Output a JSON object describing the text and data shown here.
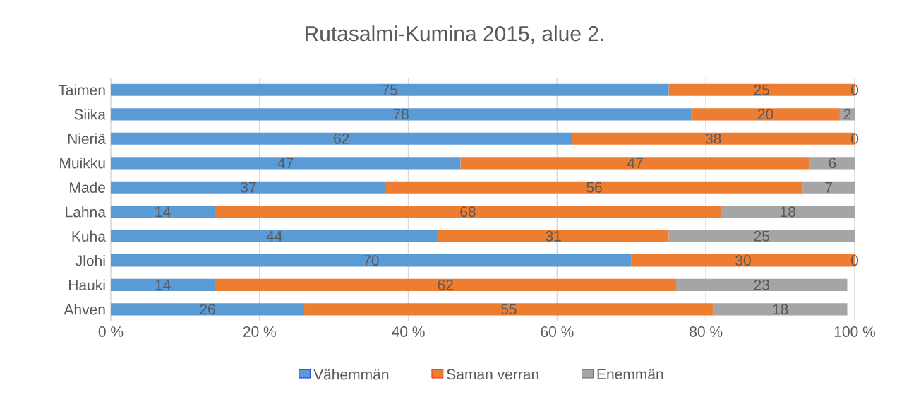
{
  "chart_data": {
    "type": "bar",
    "orientation": "horizontal",
    "stacked": true,
    "title": "Rutasalmi-Kumina 2015, alue 2.",
    "categories": [
      "Taimen",
      "Siika",
      "Nieriä",
      "Muikku",
      "Made",
      "Lahna",
      "Kuha",
      "Jlohi",
      "Hauki",
      "Ahven"
    ],
    "series": [
      {
        "name": "Vähemmän",
        "color": "#5b9bd5",
        "values": [
          75,
          78,
          62,
          47,
          37,
          14,
          44,
          70,
          14,
          26
        ]
      },
      {
        "name": "Saman verran",
        "color": "#ed7d31",
        "values": [
          25,
          20,
          38,
          47,
          56,
          68,
          31,
          30,
          62,
          55
        ]
      },
      {
        "name": "Enemmän",
        "color": "#a5a5a5",
        "values": [
          0,
          2,
          0,
          6,
          7,
          18,
          25,
          0,
          23,
          18
        ]
      }
    ],
    "xlim": [
      0,
      100
    ],
    "xticks": [
      {
        "value": 0,
        "label": "0 %"
      },
      {
        "value": 20,
        "label": "20 %"
      },
      {
        "value": 40,
        "label": "40 %"
      },
      {
        "value": 60,
        "label": "60 %"
      },
      {
        "value": 80,
        "label": "80 %"
      },
      {
        "value": 100,
        "label": "100 %"
      }
    ],
    "grid": "x",
    "legend": "bottom",
    "data_labels": true
  }
}
